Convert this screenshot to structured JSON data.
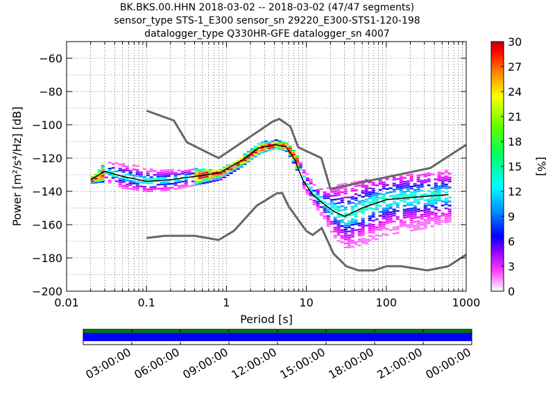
{
  "title": {
    "line1": "BK.BKS.00.HHN   2018-03-02 -- 2018-03-02  (47/47 segments)",
    "line2": "sensor_type STS-1_E300 sensor_sn 29220_E300-STS1-120-198",
    "line3": "datalogger_type Q330HR-GFE datalogger_sn 4007"
  },
  "chart_data": [
    {
      "type": "heatmap",
      "xlabel": "Period [s]",
      "ylabel": "Power [m²/s⁴/Hz] [dB]",
      "xscale": "log",
      "xlim": [
        0.01,
        1000
      ],
      "ylim": [
        -200,
        -50
      ],
      "x_ticks": [
        "0.01",
        "0.1",
        "1",
        "10",
        "100",
        "1000"
      ],
      "y_ticks": [
        "−200",
        "−180",
        "−160",
        "−140",
        "−120",
        "−100",
        "−80",
        "−60"
      ],
      "grid": "dotted",
      "colorbar": {
        "label": "[%]",
        "range": [
          0,
          30
        ],
        "ticks": [
          "0",
          "3",
          "6",
          "9",
          "12",
          "15",
          "18",
          "21",
          "24",
          "27",
          "30"
        ]
      },
      "noise_model_high": {
        "period": [
          0.1,
          0.22,
          0.32,
          0.8,
          3.8,
          4.6,
          6.3,
          7.9,
          15.4,
          20,
          354.8,
          1000
        ],
        "power": [
          -91.5,
          -97.4,
          -110.5,
          -120,
          -98,
          -96.5,
          -101,
          -113.5,
          -120,
          -138.5,
          -126,
          -112
        ]
      },
      "noise_model_low": {
        "period": [
          0.1,
          0.17,
          0.4,
          0.8,
          1.24,
          2.4,
          4.3,
          5,
          6,
          10,
          12,
          15.6,
          21.9,
          31.6,
          45,
          70,
          101,
          154,
          328,
          600,
          1000
        ],
        "power": [
          -168,
          -166.7,
          -166.7,
          -169.2,
          -163.7,
          -148.6,
          -141.1,
          -141.1,
          -149,
          -163.8,
          -166.2,
          -162.1,
          -177.5,
          -185,
          -187.5,
          -187.5,
          -185,
          -185,
          -187.5,
          -185,
          -178
        ]
      },
      "mode_curve": {
        "period": [
          0.02,
          0.03,
          0.05,
          0.1,
          0.2,
          0.4,
          0.8,
          1.5,
          2.5,
          4,
          5.5,
          7,
          9,
          12,
          16,
          22,
          30,
          50,
          100,
          300,
          600
        ],
        "power": [
          -133,
          -128,
          -131,
          -134,
          -133,
          -131,
          -129,
          -122,
          -114,
          -112,
          -113,
          -120,
          -133,
          -142,
          -147,
          -152,
          -155,
          -150,
          -145,
          -143,
          -142
        ]
      },
      "density_spread": {
        "period": [
          0.02,
          0.03,
          0.05,
          0.1,
          0.2,
          0.4,
          0.8,
          1.5,
          2.5,
          4,
          5.5,
          7,
          9,
          12,
          16,
          22,
          30,
          50,
          100,
          300,
          600
        ],
        "upper": [
          -131,
          -122,
          -123,
          -126,
          -127,
          -126,
          -127,
          -119,
          -110,
          -109,
          -110,
          -116,
          -127,
          -136,
          -139,
          -136,
          -135,
          -133,
          -131,
          -129,
          -127
        ],
        "lower": [
          -135,
          -134,
          -138,
          -140,
          -139,
          -136,
          -133,
          -125,
          -117,
          -114,
          -116,
          -125,
          -139,
          -148,
          -157,
          -168,
          -174,
          -172,
          -166,
          -162,
          -158
        ]
      }
    },
    {
      "type": "timeline",
      "x_ticks": [
        "03:00:00",
        "06:00:00",
        "09:00:00",
        "12:00:00",
        "15:00:00",
        "18:00:00",
        "21:00:00",
        "00:00:00"
      ],
      "bars": [
        {
          "name": "",
          "color": "#008000",
          "coverage": [
            0,
            24
          ]
        },
        {
          "name": "",
          "color": "#0000ff",
          "coverage": [
            0,
            24
          ]
        }
      ]
    }
  ],
  "colors": {
    "noise_model": "#666666",
    "mode_line": "#000000",
    "colormap": [
      "#ffffff",
      "#ff00ff",
      "#8000ff",
      "#0000ff",
      "#00a0ff",
      "#00ffff",
      "#00ff60",
      "#40ff00",
      "#ffff00",
      "#ff8000",
      "#ff0000",
      "#c00000"
    ]
  }
}
